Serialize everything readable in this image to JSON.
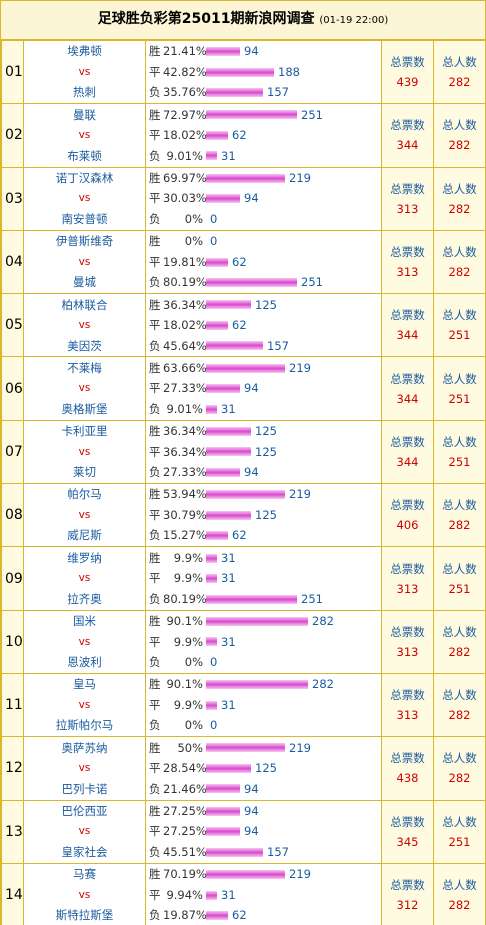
{
  "title": "足球胜负彩第25011期新浪网调查",
  "date": "(01-19 22:00)",
  "labels": {
    "win": "胜",
    "draw": "平",
    "lose": "负",
    "vs": "vs",
    "total_votes": "总票数",
    "total_people": "总人数"
  },
  "colors": {
    "team": "#1a5a9e",
    "vs": "#d00000",
    "bar": "#d946cf",
    "border": "#d9b830"
  },
  "matches": [
    {
      "no": "01",
      "home": "埃弗顿",
      "away": "热刺",
      "win_pct": "21.41%",
      "win": 94,
      "draw_pct": "42.82%",
      "draw": 188,
      "lose_pct": "35.76%",
      "lose": 157,
      "votes": "439",
      "people": "282"
    },
    {
      "no": "02",
      "home": "曼联",
      "away": "布莱顿",
      "win_pct": "72.97%",
      "win": 251,
      "draw_pct": "18.02%",
      "draw": 62,
      "lose_pct": "9.01%",
      "lose": 31,
      "votes": "344",
      "people": "282"
    },
    {
      "no": "03",
      "home": "诺丁汉森林",
      "away": "南安普顿",
      "win_pct": "69.97%",
      "win": 219,
      "draw_pct": "30.03%",
      "draw": 94,
      "lose_pct": "0%",
      "lose": 0,
      "votes": "313",
      "people": "282"
    },
    {
      "no": "04",
      "home": "伊普斯维奇",
      "away": "曼城",
      "win_pct": "0%",
      "win": 0,
      "draw_pct": "19.81%",
      "draw": 62,
      "lose_pct": "80.19%",
      "lose": 251,
      "votes": "313",
      "people": "282"
    },
    {
      "no": "05",
      "home": "柏林联合",
      "away": "美因茨",
      "win_pct": "36.34%",
      "win": 125,
      "draw_pct": "18.02%",
      "draw": 62,
      "lose_pct": "45.64%",
      "lose": 157,
      "votes": "344",
      "people": "251"
    },
    {
      "no": "06",
      "home": "不莱梅",
      "away": "奥格斯堡",
      "win_pct": "63.66%",
      "win": 219,
      "draw_pct": "27.33%",
      "draw": 94,
      "lose_pct": "9.01%",
      "lose": 31,
      "votes": "344",
      "people": "251"
    },
    {
      "no": "07",
      "home": "卡利亚里",
      "away": "莱切",
      "win_pct": "36.34%",
      "win": 125,
      "draw_pct": "36.34%",
      "draw": 125,
      "lose_pct": "27.33%",
      "lose": 94,
      "votes": "344",
      "people": "251"
    },
    {
      "no": "08",
      "home": "帕尔马",
      "away": "威尼斯",
      "win_pct": "53.94%",
      "win": 219,
      "draw_pct": "30.79%",
      "draw": 125,
      "lose_pct": "15.27%",
      "lose": 62,
      "votes": "406",
      "people": "282"
    },
    {
      "no": "09",
      "home": "维罗纳",
      "away": "拉齐奥",
      "win_pct": "9.9%",
      "win": 31,
      "draw_pct": "9.9%",
      "draw": 31,
      "lose_pct": "80.19%",
      "lose": 251,
      "votes": "313",
      "people": "251"
    },
    {
      "no": "10",
      "home": "国米",
      "away": "恩波利",
      "win_pct": "90.1%",
      "win": 282,
      "draw_pct": "9.9%",
      "draw": 31,
      "lose_pct": "0%",
      "lose": 0,
      "votes": "313",
      "people": "282"
    },
    {
      "no": "11",
      "home": "皇马",
      "away": "拉斯帕尔马",
      "win_pct": "90.1%",
      "win": 282,
      "draw_pct": "9.9%",
      "draw": 31,
      "lose_pct": "0%",
      "lose": 0,
      "votes": "313",
      "people": "282"
    },
    {
      "no": "12",
      "home": "奥萨苏纳",
      "away": "巴列卡诺",
      "win_pct": "50%",
      "win": 219,
      "draw_pct": "28.54%",
      "draw": 125,
      "lose_pct": "21.46%",
      "lose": 94,
      "votes": "438",
      "people": "282"
    },
    {
      "no": "13",
      "home": "巴伦西亚",
      "away": "皇家社会",
      "win_pct": "27.25%",
      "win": 94,
      "draw_pct": "27.25%",
      "draw": 94,
      "lose_pct": "45.51%",
      "lose": 157,
      "votes": "345",
      "people": "251"
    },
    {
      "no": "14",
      "home": "马赛",
      "away": "斯特拉斯堡",
      "win_pct": "70.19%",
      "win": 219,
      "draw_pct": "9.94%",
      "draw": 31,
      "lose_pct": "19.87%",
      "lose": 62,
      "votes": "312",
      "people": "282"
    }
  ]
}
